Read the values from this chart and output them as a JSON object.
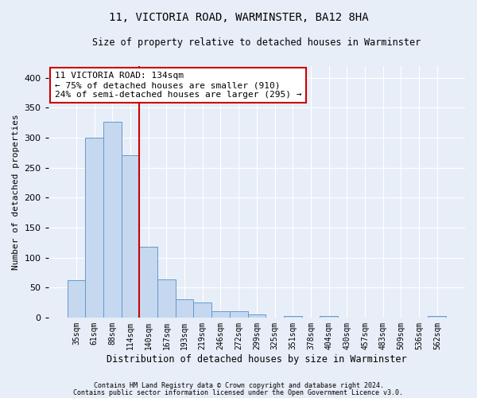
{
  "title1": "11, VICTORIA ROAD, WARMINSTER, BA12 8HA",
  "title2": "Size of property relative to detached houses in Warminster",
  "xlabel": "Distribution of detached houses by size in Warminster",
  "ylabel": "Number of detached properties",
  "categories": [
    "35sqm",
    "61sqm",
    "88sqm",
    "114sqm",
    "140sqm",
    "167sqm",
    "193sqm",
    "219sqm",
    "246sqm",
    "272sqm",
    "299sqm",
    "325sqm",
    "351sqm",
    "378sqm",
    "404sqm",
    "430sqm",
    "457sqm",
    "483sqm",
    "509sqm",
    "536sqm",
    "562sqm"
  ],
  "values": [
    62,
    300,
    327,
    270,
    118,
    63,
    30,
    25,
    10,
    10,
    5,
    0,
    2,
    0,
    2,
    0,
    0,
    0,
    0,
    0,
    2
  ],
  "bar_color": "#c5d8f0",
  "bar_edge_color": "#6699cc",
  "vline_x": 3.5,
  "vline_color": "#cc0000",
  "annotation_text": "11 VICTORIA ROAD: 134sqm\n← 75% of detached houses are smaller (910)\n24% of semi-detached houses are larger (295) →",
  "annotation_box_color": "#ffffff",
  "annotation_box_edge": "#cc0000",
  "ylim": [
    0,
    420
  ],
  "yticks": [
    0,
    50,
    100,
    150,
    200,
    250,
    300,
    350,
    400
  ],
  "footer1": "Contains HM Land Registry data © Crown copyright and database right 2024.",
  "footer2": "Contains public sector information licensed under the Open Government Licence v3.0.",
  "background_color": "#e8eef8",
  "plot_background": "#e8eef8"
}
